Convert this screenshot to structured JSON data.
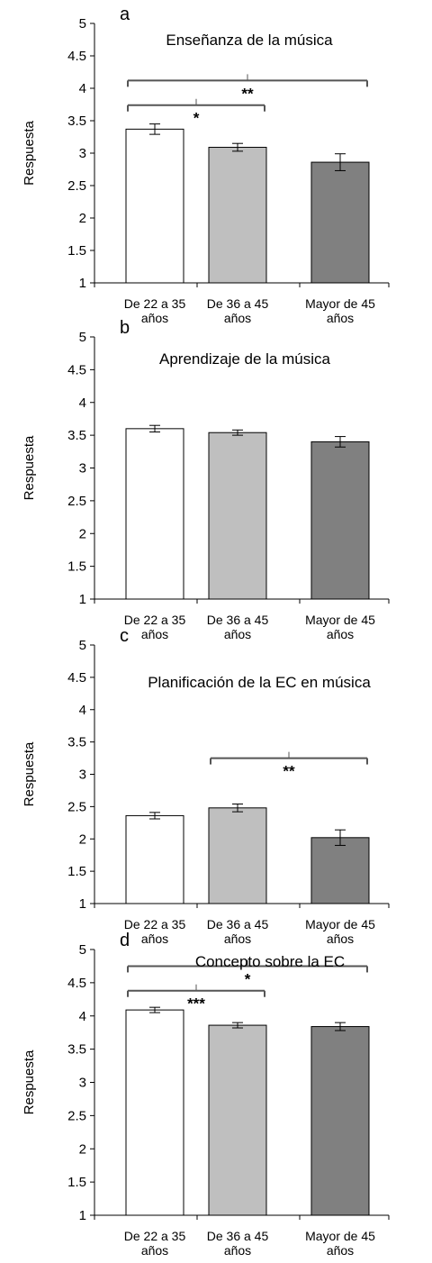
{
  "chart_data": [
    {
      "type": "bar",
      "panel_letter": "a",
      "title": "Enseñanza de la música",
      "ylabel": "Respuesta",
      "ylim": [
        1,
        5
      ],
      "ytick_labels": [
        "1",
        "1.5",
        "2",
        "2.5",
        "3",
        "3.5",
        "4",
        "4.5",
        "5"
      ],
      "categories": [
        [
          "De 22 a 35",
          "años"
        ],
        [
          "De 36 a 45",
          "años"
        ],
        [
          "Mayor de 45",
          "años"
        ]
      ],
      "values": [
        3.37,
        3.09,
        2.86
      ],
      "errors": [
        0.08,
        0.06,
        0.13
      ],
      "bar_colors": [
        "#ffffff",
        "#bfbfbf",
        "#808080"
      ],
      "significance": [
        {
          "from": 0,
          "to": 1,
          "label": "*",
          "y": 3.74
        },
        {
          "from": 0,
          "to": 2,
          "label": "**",
          "y": 4.12
        }
      ]
    },
    {
      "type": "bar",
      "panel_letter": "b",
      "title": "Aprendizaje de la música",
      "ylabel": "Respuesta",
      "ylim": [
        1,
        5
      ],
      "ytick_labels": [
        "1",
        "1.5",
        "2",
        "2.5",
        "3",
        "3.5",
        "4",
        "4.5",
        "5"
      ],
      "categories": [
        [
          "De 22 a 35",
          "años"
        ],
        [
          "De 36 a 45",
          "años"
        ],
        [
          "Mayor de 45",
          "años"
        ]
      ],
      "values": [
        3.6,
        3.54,
        3.4
      ],
      "errors": [
        0.05,
        0.04,
        0.08
      ],
      "bar_colors": [
        "#ffffff",
        "#bfbfbf",
        "#808080"
      ],
      "significance": []
    },
    {
      "type": "bar",
      "panel_letter": "c",
      "title": "Planificación de la EC en música",
      "ylabel": "Respuesta",
      "ylim": [
        1,
        5
      ],
      "ytick_labels": [
        "1",
        "1.5",
        "2",
        "2.5",
        "3",
        "3.5",
        "4",
        "4.5",
        "5"
      ],
      "categories": [
        [
          "De 22 a 35",
          "años"
        ],
        [
          "De 36 a 45",
          "años"
        ],
        [
          "Mayor de 45",
          "años"
        ]
      ],
      "values": [
        2.36,
        2.48,
        2.02
      ],
      "errors": [
        0.05,
        0.06,
        0.12
      ],
      "bar_colors": [
        "#ffffff",
        "#bfbfbf",
        "#808080"
      ],
      "significance": [
        {
          "from": 1,
          "to": 2,
          "label": "**",
          "y": 3.25
        }
      ]
    },
    {
      "type": "bar",
      "panel_letter": "d",
      "title": "Concepto sobre la EC",
      "ylabel": "Respuesta",
      "ylim": [
        1,
        5
      ],
      "ytick_labels": [
        "1",
        "1.5",
        "2",
        "2.5",
        "3",
        "3.5",
        "4",
        "4.5",
        "5"
      ],
      "categories": [
        [
          "De 22 a 35",
          "años"
        ],
        [
          "De 36 a 45",
          "años"
        ],
        [
          "Mayor de 45",
          "años"
        ]
      ],
      "values": [
        4.09,
        3.86,
        3.84
      ],
      "errors": [
        0.04,
        0.04,
        0.06
      ],
      "bar_colors": [
        "#ffffff",
        "#bfbfbf",
        "#808080"
      ],
      "significance": [
        {
          "from": 0,
          "to": 1,
          "label": "***",
          "y": 4.38
        },
        {
          "from": 0,
          "to": 2,
          "label": "*",
          "y": 4.75
        }
      ]
    }
  ]
}
